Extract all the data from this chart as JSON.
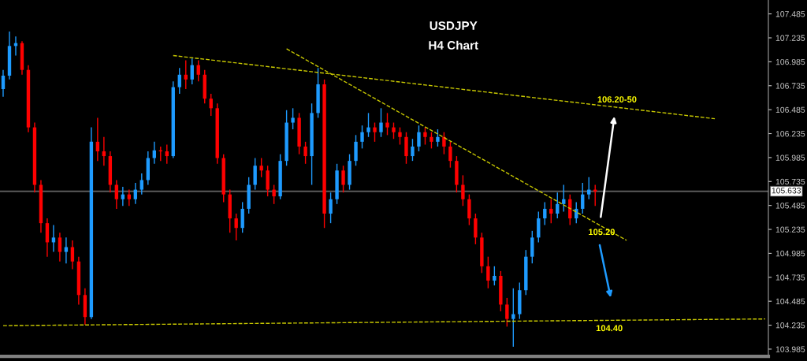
{
  "chart_data": {
    "type": "candlestick",
    "title": "USDJPY",
    "subtitle": "H4 Chart",
    "categories": [
      null,
      null,
      null,
      null,
      null,
      null,
      null,
      null,
      null,
      null,
      null,
      null,
      null,
      null,
      null,
      null,
      null,
      null,
      null,
      null,
      null,
      null,
      null,
      null,
      null,
      null,
      null,
      null,
      null,
      null,
      null,
      null,
      null,
      null,
      null,
      null,
      null,
      null,
      null,
      null,
      null,
      null,
      null,
      null,
      null,
      null,
      null,
      null,
      null,
      null,
      null,
      null,
      null,
      null,
      null,
      null,
      null,
      null,
      null,
      null,
      null,
      null,
      null,
      null,
      null,
      null,
      null,
      null,
      null,
      null,
      null,
      null,
      null,
      null,
      null,
      null,
      null,
      null,
      null,
      null,
      null,
      null,
      null,
      null,
      null,
      null,
      null,
      null,
      null,
      null,
      null,
      null,
      null,
      null,
      null,
      null,
      null,
      null,
      null,
      null,
      null,
      null,
      null,
      null,
      null,
      null,
      null,
      null,
      null,
      null,
      null,
      null,
      null,
      null,
      null,
      null,
      null,
      null,
      null,
      null,
      null,
      null
    ],
    "ohlc": [
      [
        106.7,
        106.9,
        106.62,
        106.84
      ],
      [
        106.84,
        107.3,
        106.8,
        107.15
      ],
      [
        107.15,
        107.25,
        107.05,
        107.18
      ],
      [
        107.18,
        107.2,
        106.85,
        106.9
      ],
      [
        106.9,
        106.95,
        106.25,
        106.3
      ],
      [
        106.3,
        106.35,
        105.62,
        105.7
      ],
      [
        105.7,
        105.75,
        105.2,
        105.3
      ],
      [
        105.3,
        105.35,
        104.95,
        105.1
      ],
      [
        105.1,
        105.28,
        105.0,
        105.15
      ],
      [
        105.15,
        105.2,
        104.9,
        105.0
      ],
      [
        105.0,
        105.15,
        104.88,
        105.05
      ],
      [
        105.05,
        105.12,
        104.82,
        104.9
      ],
      [
        104.9,
        104.95,
        104.45,
        104.55
      ],
      [
        104.55,
        104.62,
        104.24,
        104.32
      ],
      [
        104.32,
        106.3,
        104.3,
        106.15
      ],
      [
        106.15,
        106.4,
        105.95,
        106.05
      ],
      [
        106.05,
        106.2,
        105.9,
        106.0
      ],
      [
        106.0,
        106.05,
        105.62,
        105.7
      ],
      [
        105.7,
        105.75,
        105.45,
        105.55
      ],
      [
        105.55,
        105.68,
        105.48,
        105.6
      ],
      [
        105.6,
        105.65,
        105.48,
        105.55
      ],
      [
        105.55,
        105.72,
        105.5,
        105.65
      ],
      [
        105.65,
        105.82,
        105.6,
        105.75
      ],
      [
        105.75,
        106.05,
        105.7,
        105.98
      ],
      [
        105.98,
        106.15,
        105.92,
        106.06
      ],
      [
        106.06,
        106.1,
        105.95,
        106.05
      ],
      [
        106.05,
        106.12,
        105.92,
        106.0
      ],
      [
        106.0,
        106.78,
        105.98,
        106.72
      ],
      [
        106.72,
        106.92,
        106.65,
        106.85
      ],
      [
        106.85,
        107.0,
        106.7,
        106.8
      ],
      [
        106.8,
        107.02,
        106.75,
        106.95
      ],
      [
        106.95,
        107.0,
        106.78,
        106.85
      ],
      [
        106.85,
        106.9,
        106.55,
        106.6
      ],
      [
        106.6,
        106.65,
        106.42,
        106.5
      ],
      [
        106.5,
        106.55,
        105.92,
        105.98
      ],
      [
        105.98,
        106.02,
        105.52,
        105.6
      ],
      [
        105.6,
        105.65,
        105.2,
        105.35
      ],
      [
        105.35,
        105.4,
        105.12,
        105.25
      ],
      [
        105.25,
        105.52,
        105.2,
        105.45
      ],
      [
        105.45,
        105.78,
        105.4,
        105.7
      ],
      [
        105.7,
        105.98,
        105.65,
        105.9
      ],
      [
        105.9,
        105.98,
        105.78,
        105.85
      ],
      [
        105.85,
        105.9,
        105.58,
        105.65
      ],
      [
        105.65,
        105.7,
        105.5,
        105.58
      ],
      [
        105.58,
        106.02,
        105.55,
        105.95
      ],
      [
        105.95,
        106.48,
        105.9,
        106.35
      ],
      [
        106.35,
        106.5,
        106.28,
        106.4
      ],
      [
        106.4,
        106.45,
        106.02,
        106.1
      ],
      [
        106.1,
        106.15,
        105.92,
        106.0
      ],
      [
        106.0,
        106.55,
        105.7,
        106.45
      ],
      [
        106.45,
        106.92,
        106.4,
        106.75
      ],
      [
        106.75,
        106.8,
        105.25,
        105.4
      ],
      [
        105.4,
        105.62,
        105.3,
        105.55
      ],
      [
        105.55,
        105.92,
        105.5,
        105.85
      ],
      [
        105.85,
        105.9,
        105.62,
        105.7
      ],
      [
        105.7,
        106.02,
        105.65,
        105.95
      ],
      [
        105.95,
        106.22,
        105.9,
        106.15
      ],
      [
        106.15,
        106.32,
        106.08,
        106.25
      ],
      [
        106.25,
        106.45,
        106.2,
        106.3
      ],
      [
        106.3,
        106.35,
        106.15,
        106.25
      ],
      [
        106.25,
        106.5,
        106.2,
        106.35
      ],
      [
        106.35,
        106.45,
        106.22,
        106.3
      ],
      [
        106.3,
        106.35,
        106.18,
        106.25
      ],
      [
        106.25,
        106.3,
        106.12,
        106.2
      ],
      [
        106.2,
        106.25,
        105.92,
        106.0
      ],
      [
        106.0,
        106.18,
        105.95,
        106.1
      ],
      [
        106.1,
        106.32,
        106.05,
        106.25
      ],
      [
        106.25,
        106.3,
        106.12,
        106.2
      ],
      [
        106.2,
        106.25,
        106.08,
        106.15
      ],
      [
        106.15,
        106.28,
        106.1,
        106.2
      ],
      [
        106.2,
        106.25,
        106.02,
        106.1
      ],
      [
        106.1,
        106.15,
        105.88,
        105.95
      ],
      [
        105.95,
        106.0,
        105.62,
        105.7
      ],
      [
        105.7,
        105.8,
        105.48,
        105.55
      ],
      [
        105.55,
        105.6,
        105.28,
        105.35
      ],
      [
        105.35,
        105.4,
        105.08,
        105.15
      ],
      [
        105.15,
        105.2,
        104.78,
        104.85
      ],
      [
        104.85,
        104.95,
        104.62,
        104.7
      ],
      [
        104.7,
        104.85,
        104.65,
        104.75
      ],
      [
        104.75,
        104.8,
        104.38,
        104.45
      ],
      [
        104.45,
        104.52,
        104.22,
        104.3
      ],
      [
        104.3,
        104.62,
        104.01,
        104.35
      ],
      [
        104.35,
        104.68,
        104.3,
        104.6
      ],
      [
        104.6,
        105.02,
        104.55,
        104.95
      ],
      [
        104.95,
        105.22,
        104.88,
        105.15
      ],
      [
        105.15,
        105.42,
        105.1,
        105.35
      ],
      [
        105.35,
        105.52,
        105.28,
        105.45
      ],
      [
        105.45,
        105.55,
        105.3,
        105.4
      ],
      [
        105.4,
        105.62,
        105.35,
        105.5
      ],
      [
        105.5,
        105.7,
        105.42,
        105.55
      ],
      [
        105.55,
        105.6,
        105.28,
        105.35
      ],
      [
        105.35,
        105.52,
        105.3,
        105.45
      ],
      [
        105.45,
        105.72,
        105.4,
        105.6
      ],
      [
        105.6,
        105.78,
        105.55,
        105.65
      ],
      [
        105.65,
        105.7,
        105.48,
        105.63
      ],
      null,
      null,
      null,
      null,
      null,
      null,
      null,
      null,
      null,
      null,
      null,
      null,
      null,
      null,
      null,
      null,
      null,
      null,
      null,
      null,
      null,
      null,
      null,
      null,
      null,
      null,
      null
    ],
    "colors": [
      "#1e9bff",
      "#1e9bff",
      "#1e9bff",
      "#ff0000",
      "#ff0000",
      "#ff0000",
      "#ff0000",
      "#ff0000",
      "#1e9bff",
      "#ff0000",
      "#1e9bff",
      "#ff0000",
      "#ff0000",
      "#ff0000",
      "#1e9bff",
      "#ff0000",
      "#ff0000",
      "#ff0000",
      "#ff0000",
      "#1e9bff",
      "#ff0000",
      "#1e9bff",
      "#1e9bff",
      "#1e9bff",
      "#1e9bff",
      "#ff0000",
      "#ff0000",
      "#1e9bff",
      "#1e9bff",
      "#ff0000",
      "#1e9bff",
      "#ff0000",
      "#ff0000",
      "#ff0000",
      "#ff0000",
      "#ff0000",
      "#ff0000",
      "#ff0000",
      "#1e9bff",
      "#1e9bff",
      "#1e9bff",
      "#ff0000",
      "#ff0000",
      "#ff0000",
      "#1e9bff",
      "#1e9bff",
      "#1e9bff",
      "#ff0000",
      "#ff0000",
      "#1e9bff",
      "#1e9bff",
      "#ff0000",
      "#1e9bff",
      "#1e9bff",
      "#ff0000",
      "#1e9bff",
      "#1e9bff",
      "#1e9bff",
      "#1e9bff",
      "#ff0000",
      "#1e9bff",
      "#ff0000",
      "#ff0000",
      "#ff0000",
      "#ff0000",
      "#1e9bff",
      "#1e9bff",
      "#ff0000",
      "#ff0000",
      "#1e9bff",
      "#ff0000",
      "#ff0000",
      "#ff0000",
      "#ff0000",
      "#ff0000",
      "#ff0000",
      "#ff0000",
      "#ff0000",
      "#1e9bff",
      "#ff0000",
      "#ff0000",
      "#1e9bff",
      "#1e9bff",
      "#1e9bff",
      "#1e9bff",
      "#1e9bff",
      "#1e9bff",
      "#ff0000",
      "#1e9bff",
      "#1e9bff",
      "#ff0000",
      "#1e9bff",
      "#1e9bff",
      "#1e9bff",
      "#ff0000",
      null,
      null,
      null,
      null,
      null,
      null,
      null,
      null,
      null,
      null,
      null,
      null,
      null,
      null,
      null,
      null,
      null,
      null,
      null,
      null,
      null,
      null,
      null,
      null,
      null,
      null,
      null
    ],
    "series": [
      {
        "type": "line",
        "color": "#c8c800",
        "values": [
          null,
          null,
          null,
          null,
          null,
          null,
          null,
          null,
          null,
          null,
          null,
          null,
          null,
          null,
          null,
          null,
          null,
          null,
          null,
          null,
          null,
          null,
          null,
          null,
          null,
          null,
          null,
          107.05,
          null,
          null,
          null,
          null,
          null,
          null,
          null,
          null,
          null,
          null,
          null,
          null,
          null,
          null,
          null,
          null,
          null,
          null,
          null,
          null,
          null,
          null,
          null,
          null,
          null,
          null,
          null,
          null,
          null,
          null,
          null,
          null,
          null,
          null,
          null,
          null,
          null,
          null,
          null,
          null,
          null,
          null,
          null,
          null,
          null,
          null,
          null,
          null,
          null,
          null,
          null,
          null,
          null,
          null,
          null,
          null,
          null,
          null,
          null,
          null,
          null,
          null,
          null,
          null,
          null,
          null,
          null,
          null,
          null,
          null,
          null,
          null,
          null,
          null,
          null,
          null,
          null,
          null,
          null,
          null,
          null,
          null,
          null,
          null,
          null,
          106.39,
          null,
          null,
          null,
          null,
          null,
          null,
          null,
          null
        ]
      },
      {
        "type": "line",
        "color": "#c8c800",
        "values": [
          null,
          null,
          null,
          null,
          null,
          null,
          null,
          null,
          null,
          null,
          null,
          null,
          null,
          null,
          null,
          null,
          null,
          null,
          null,
          null,
          null,
          null,
          null,
          null,
          null,
          null,
          null,
          null,
          null,
          null,
          null,
          null,
          null,
          null,
          null,
          null,
          null,
          null,
          null,
          null,
          null,
          null,
          null,
          null,
          null,
          107.12,
          null,
          null,
          null,
          null,
          null,
          null,
          null,
          null,
          null,
          null,
          null,
          null,
          null,
          null,
          null,
          null,
          null,
          null,
          null,
          null,
          null,
          null,
          null,
          null,
          null,
          null,
          null,
          null,
          null,
          null,
          null,
          null,
          null,
          null,
          null,
          null,
          null,
          null,
          null,
          null,
          null,
          null,
          null,
          null,
          null,
          null,
          null,
          null,
          null,
          null,
          null,
          null,
          null,
          105.12,
          null,
          null,
          null,
          null,
          null,
          null,
          null,
          null,
          null,
          null,
          null,
          null,
          null,
          null,
          null,
          null,
          null,
          null,
          null,
          null,
          null,
          null
        ]
      },
      {
        "type": "line",
        "color": "#c8c800",
        "values": [
          104.23,
          null,
          null,
          null,
          null,
          null,
          null,
          null,
          null,
          null,
          null,
          null,
          null,
          null,
          null,
          null,
          null,
          null,
          null,
          null,
          null,
          null,
          null,
          null,
          null,
          null,
          null,
          null,
          null,
          null,
          null,
          null,
          null,
          null,
          null,
          null,
          null,
          null,
          null,
          null,
          null,
          null,
          null,
          null,
          null,
          null,
          null,
          null,
          null,
          null,
          null,
          null,
          null,
          null,
          null,
          null,
          null,
          null,
          null,
          null,
          null,
          null,
          null,
          null,
          null,
          null,
          null,
          null,
          null,
          null,
          null,
          null,
          null,
          null,
          null,
          null,
          null,
          null,
          null,
          null,
          null,
          null,
          null,
          null,
          null,
          null,
          null,
          null,
          null,
          null,
          null,
          null,
          null,
          null,
          null,
          null,
          null,
          null,
          null,
          null,
          null,
          null,
          null,
          null,
          null,
          null,
          null,
          null,
          null,
          null,
          null,
          null,
          null,
          null,
          null,
          null,
          null,
          null,
          null,
          null,
          null,
          104.3
        ]
      }
    ],
    "line_style": "dashed",
    "ylim": [
      103.91,
      107.63
    ],
    "yticks": [
      103.985,
      104.235,
      104.485,
      104.735,
      104.985,
      105.235,
      105.485,
      105.735,
      105.985,
      106.235,
      106.485,
      106.735,
      106.985,
      107.235,
      107.485
    ],
    "tick_labels": "y",
    "ref_lines": [
      {
        "axis": "y",
        "value": 105.633,
        "label": "105.633",
        "color": "#5a5a5a"
      }
    ],
    "annotations": [
      "106.20-50",
      "105.20",
      "104.40"
    ]
  }
}
